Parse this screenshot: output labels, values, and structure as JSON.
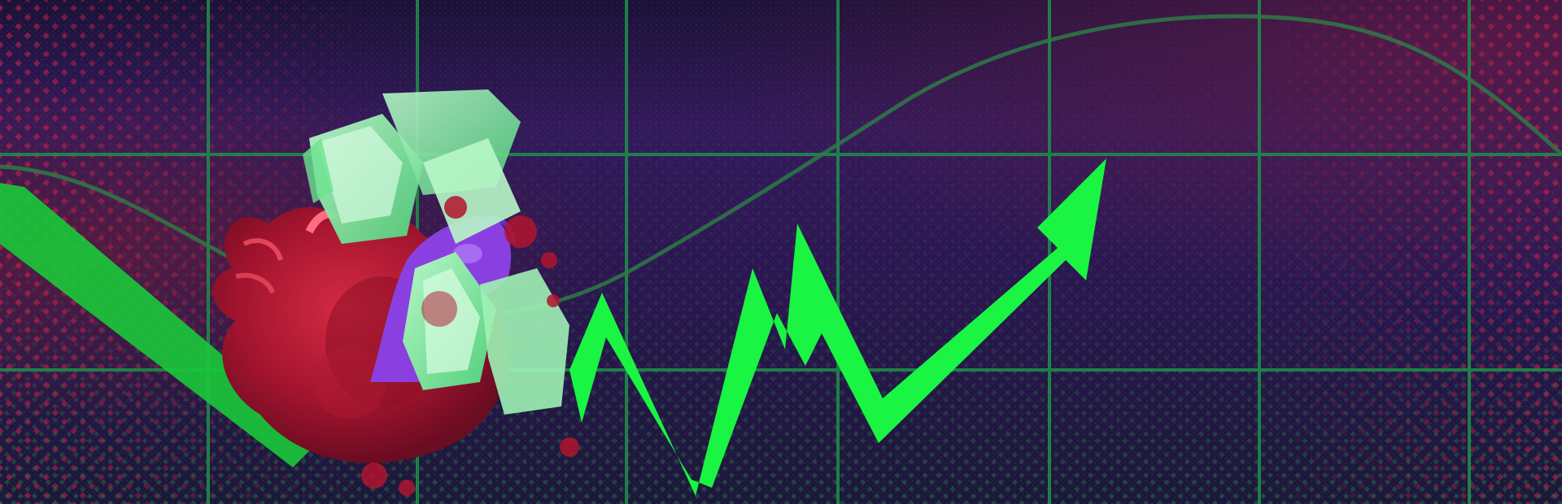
{
  "illustration": {
    "subject": "",
    "palette": {
      "background_dark": "#150f2b",
      "background_purple": "#3a1f5e",
      "grid_green": "#1f8a4a",
      "arrow_green": "#19f542",
      "curve_green": "#2d7a45",
      "cash_green": "#9ef2b5",
      "heart_red": "#c8203c",
      "hand_purple": "#8a3fe0",
      "halftone_red": "#e0264a"
    }
  }
}
